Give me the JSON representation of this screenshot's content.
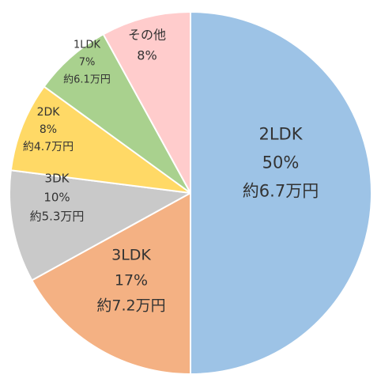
{
  "chart_data": {
    "type": "pie",
    "title": "",
    "legend": "none",
    "start_angle_deg": 0,
    "direction": "clockwise",
    "slices": [
      {
        "label": "2LDK",
        "percent": 50,
        "value_text": "50%",
        "price": "約6.7万円",
        "color": "#9DC3E6"
      },
      {
        "label": "3LDK",
        "percent": 17,
        "value_text": "17%",
        "price": "約7.2万円",
        "color": "#F4B183"
      },
      {
        "label": "3DK",
        "percent": 10,
        "value_text": "10%",
        "price": "約5.3万円",
        "color": "#C9C9C9"
      },
      {
        "label": "2DK",
        "percent": 8,
        "value_text": "8%",
        "price": "約4.7万円",
        "color": "#FFD966"
      },
      {
        "label": "1LDK",
        "percent": 7,
        "value_text": "7%",
        "price": "約6.1万円",
        "color": "#A9D18E"
      },
      {
        "label": "その他",
        "percent": 8,
        "value_text": "8%",
        "price": "",
        "color": "#FFCCCC"
      }
    ]
  }
}
